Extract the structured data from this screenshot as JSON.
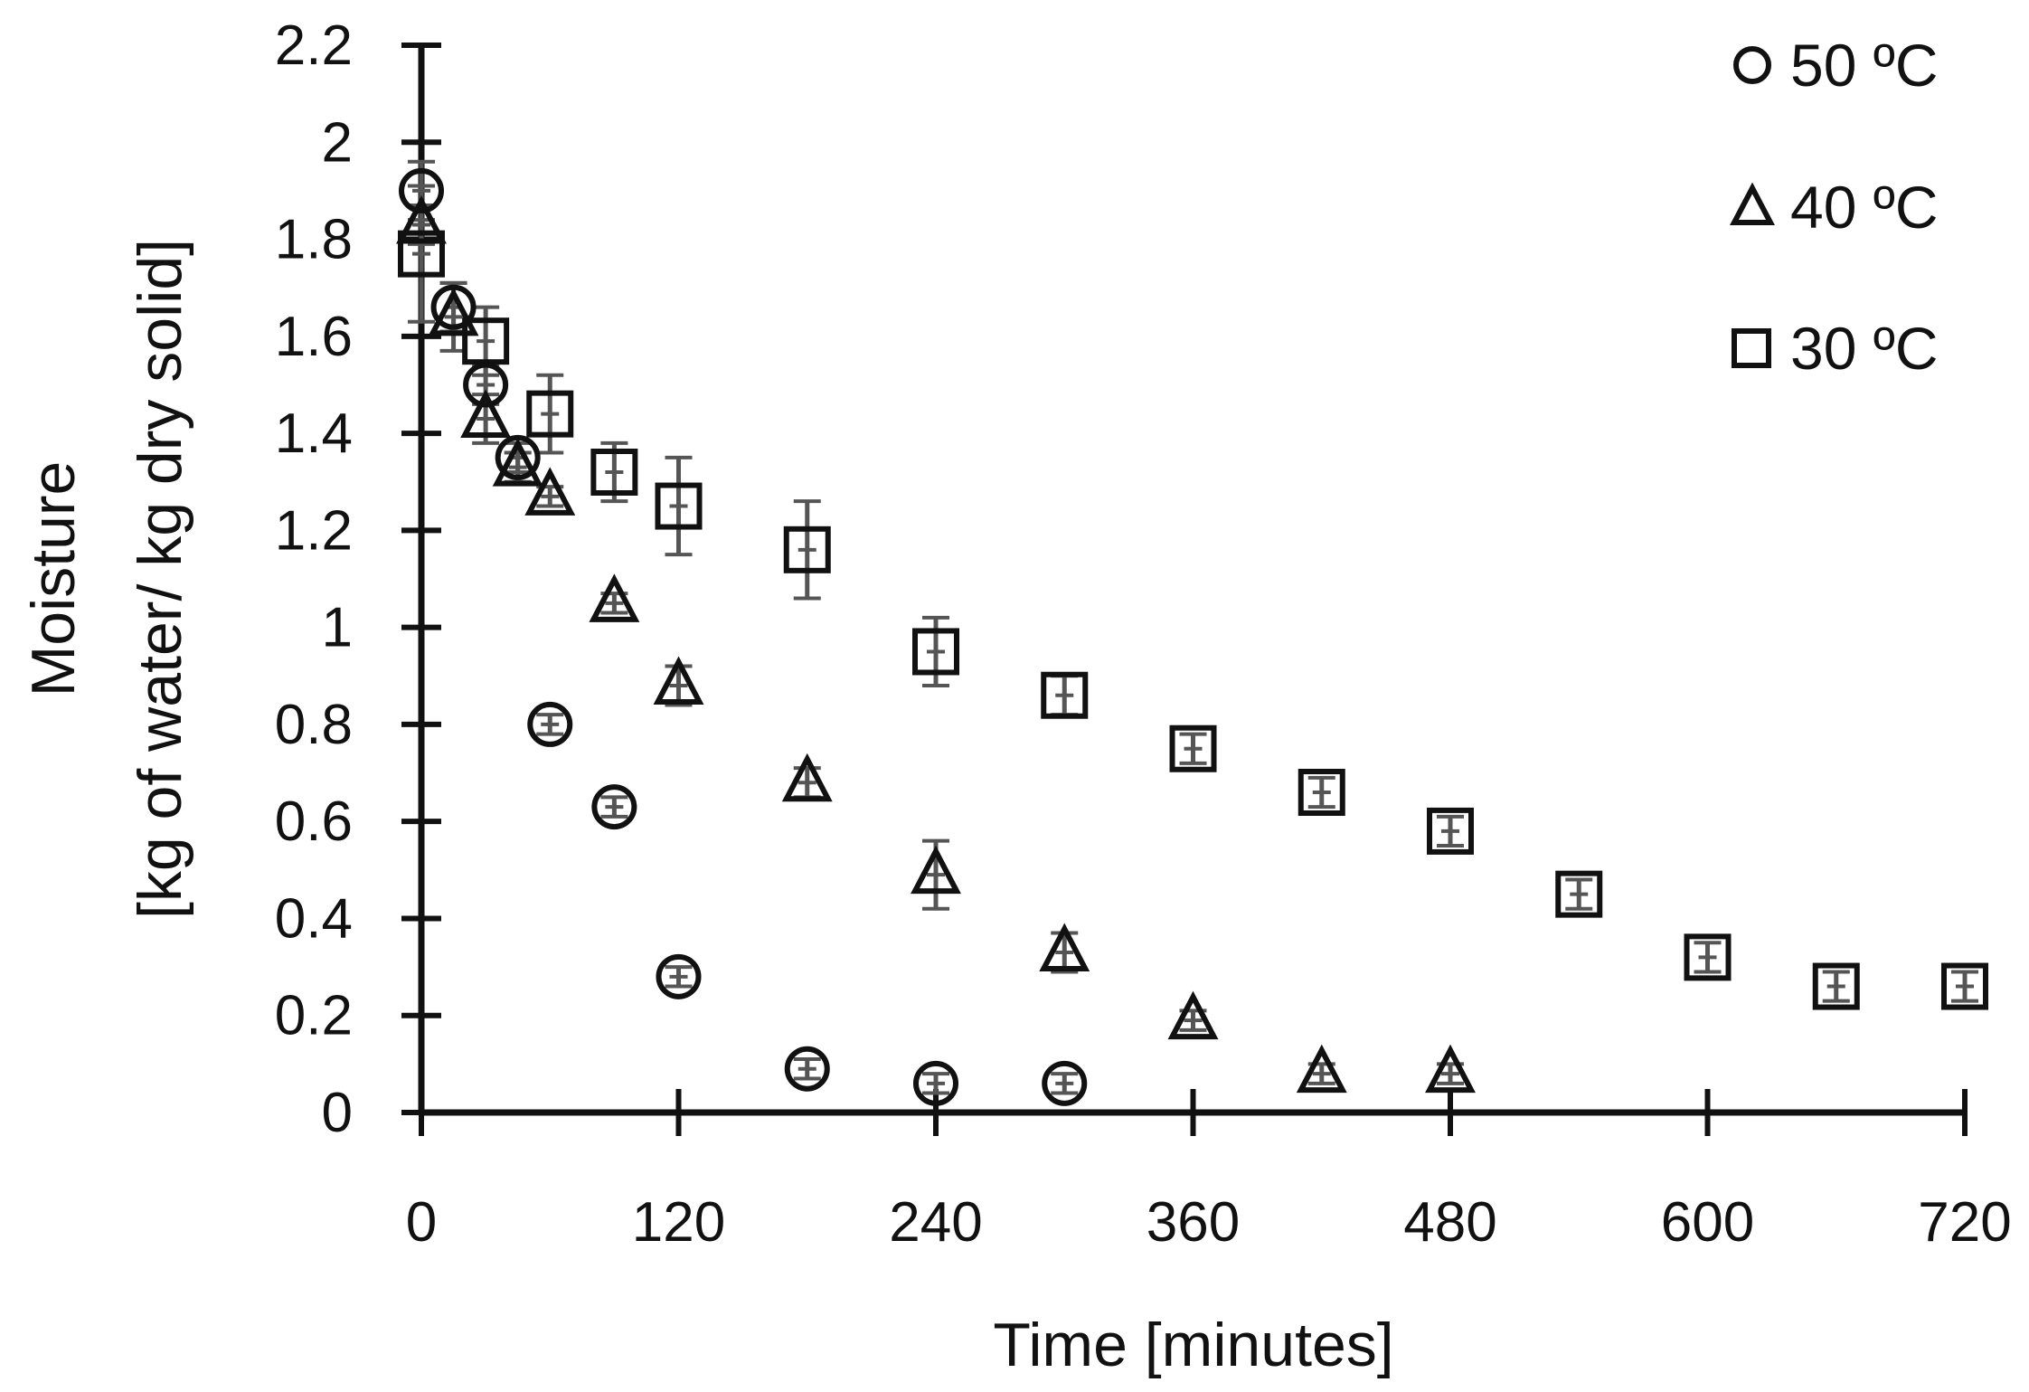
{
  "chart_data": {
    "type": "scatter",
    "title": "",
    "xlabel": "Time [minutes]",
    "ylabel_line1": "Moisture",
    "ylabel_line2": "[kg of water/ kg dry solid]",
    "xlim": [
      0,
      720
    ],
    "ylim": [
      0,
      2.2
    ],
    "x_ticks": [
      0,
      120,
      240,
      360,
      480,
      600,
      720
    ],
    "x_tick_labels": [
      "0",
      "120",
      "240",
      "360",
      "480",
      "600",
      "720"
    ],
    "y_ticks": [
      0,
      0.2,
      0.4,
      0.6,
      0.8,
      1,
      1.2,
      1.4,
      1.6,
      1.8,
      2,
      2.2
    ],
    "y_tick_labels": [
      "0",
      "0.2",
      "0.4",
      "0.6",
      "0.8",
      "1",
      "1.2",
      "1.4",
      "1.6",
      "1.8",
      "2",
      "2.2"
    ],
    "grid": false,
    "legend_position": "top-right",
    "series": [
      {
        "name": "50 ºC",
        "marker": "circle",
        "x": [
          0,
          15,
          30,
          45,
          60,
          90,
          120,
          180,
          240,
          300
        ],
        "y": [
          1.9,
          1.66,
          1.5,
          1.35,
          0.8,
          0.63,
          0.28,
          0.09,
          0.06,
          0.06
        ],
        "err": [
          0.06,
          0.05,
          0.04,
          0.03,
          0.02,
          0.02,
          0.02,
          0.02,
          0.02,
          0.02
        ]
      },
      {
        "name": "40 ºC",
        "marker": "triangle",
        "x": [
          0,
          15,
          30,
          45,
          60,
          90,
          120,
          180,
          240,
          300,
          360,
          420,
          480
        ],
        "y": [
          1.83,
          1.64,
          1.43,
          1.33,
          1.27,
          1.05,
          0.88,
          0.68,
          0.49,
          0.33,
          0.19,
          0.08,
          0.08
        ],
        "err": [
          0.04,
          0.07,
          0.05,
          0.03,
          0.02,
          0.02,
          0.04,
          0.03,
          0.07,
          0.04,
          0.02,
          0.02,
          0.02
        ]
      },
      {
        "name": "30 ºC",
        "marker": "square",
        "x": [
          0,
          30,
          60,
          90,
          120,
          180,
          240,
          300,
          360,
          420,
          480,
          540,
          600,
          660,
          720
        ],
        "y": [
          1.77,
          1.59,
          1.44,
          1.32,
          1.25,
          1.16,
          0.95,
          0.86,
          0.75,
          0.66,
          0.58,
          0.45,
          0.32,
          0.26,
          0.26
        ],
        "err": [
          0.14,
          0.07,
          0.08,
          0.06,
          0.1,
          0.1,
          0.07,
          0.04,
          0.03,
          0.03,
          0.03,
          0.03,
          0.03,
          0.03,
          0.03
        ]
      }
    ]
  }
}
